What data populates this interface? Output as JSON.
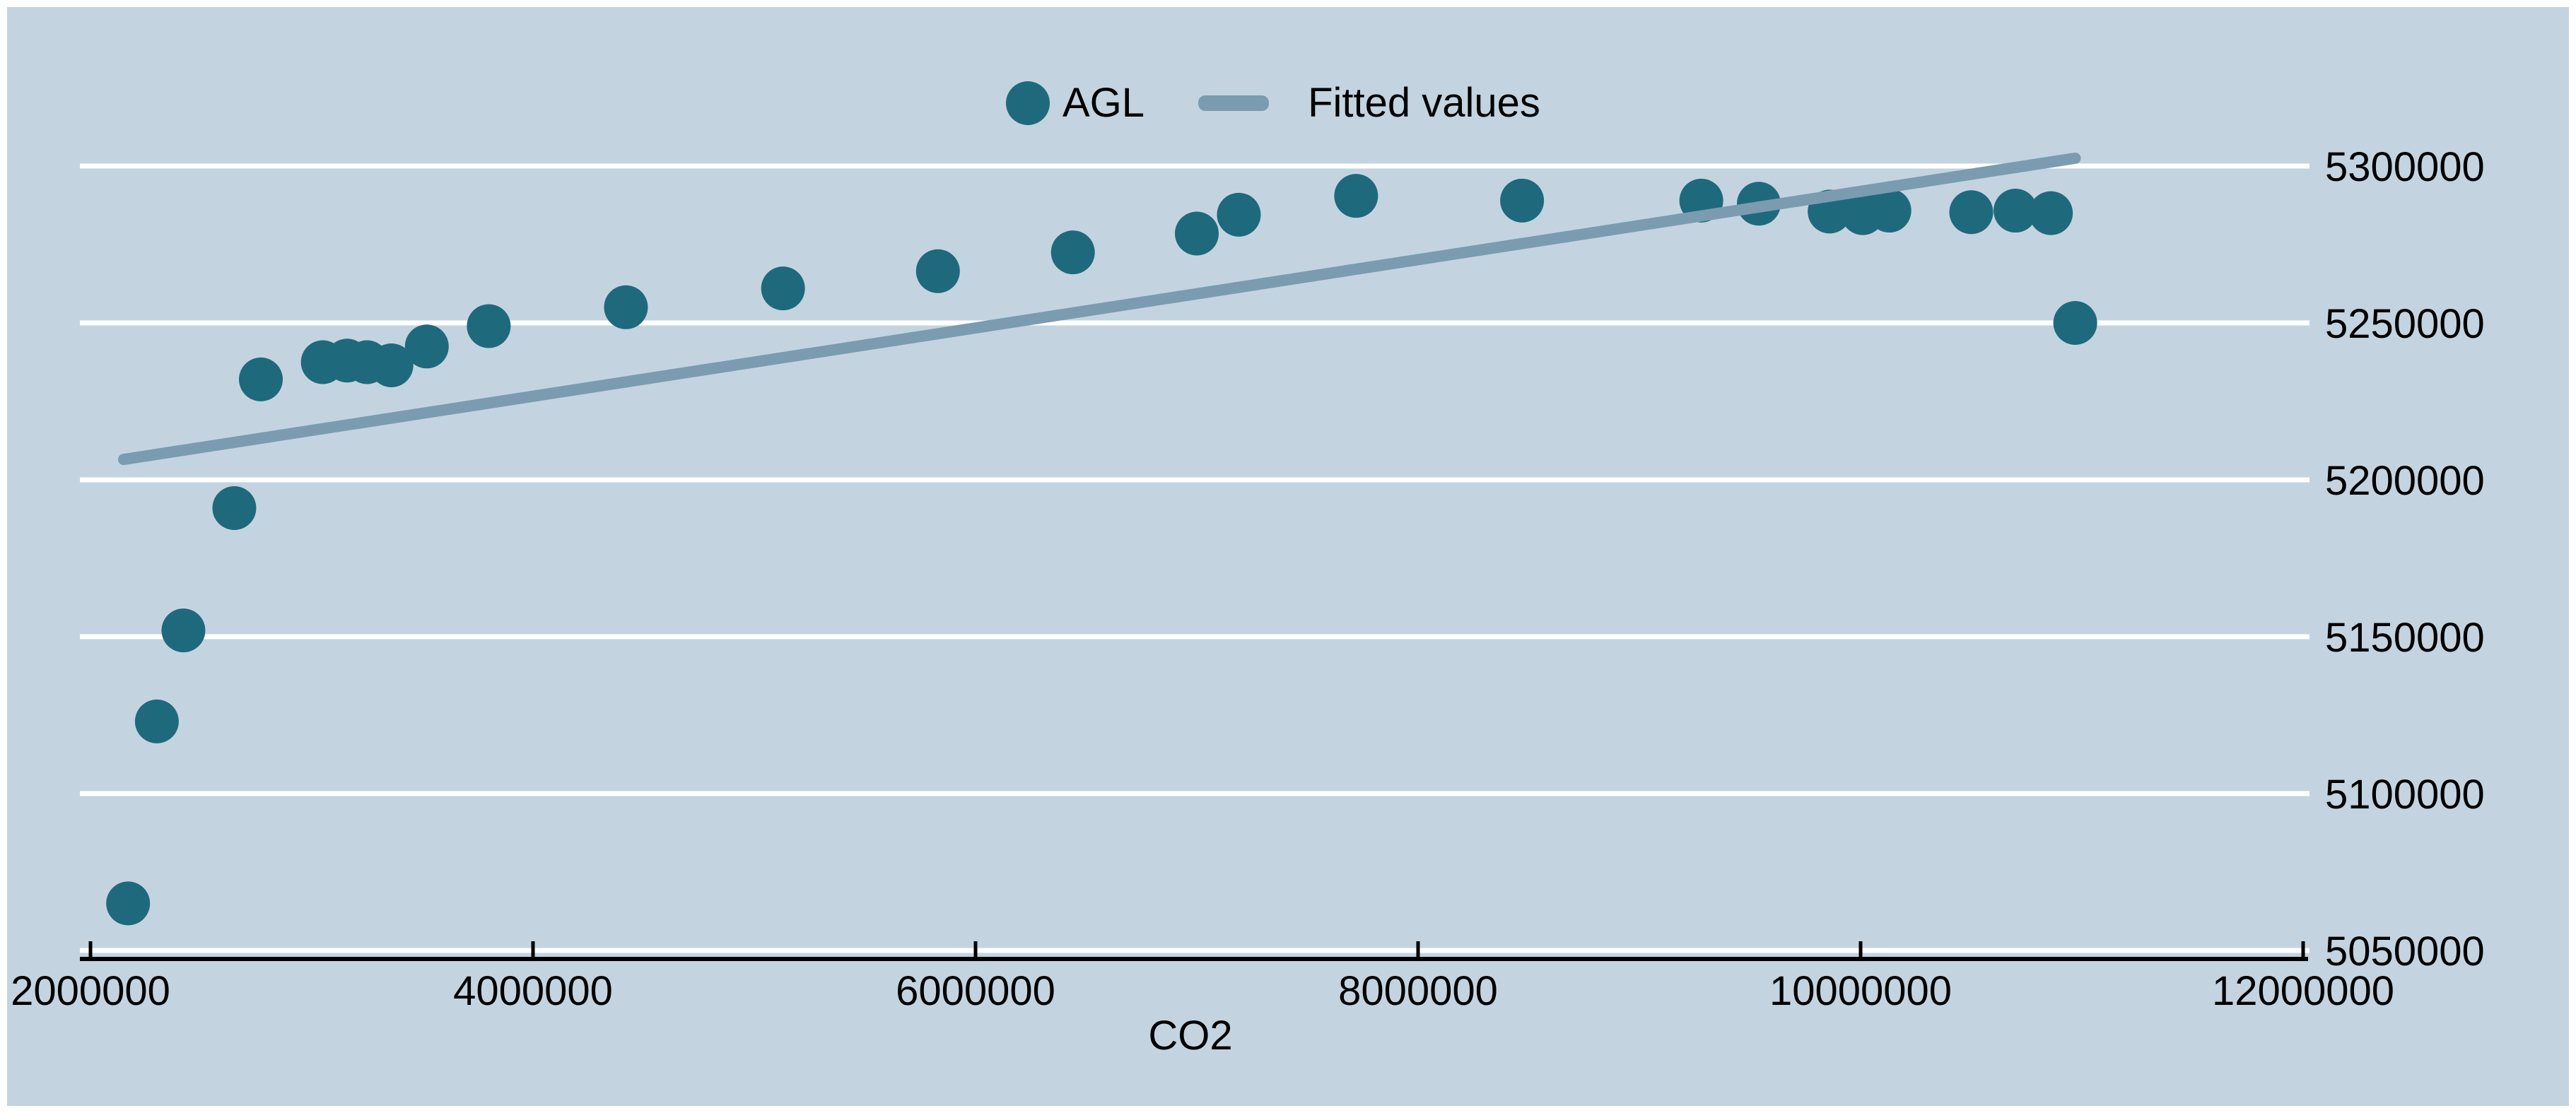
{
  "figure_title": "",
  "legend": {
    "items": [
      {
        "label": "AGL",
        "marker": "circle"
      },
      {
        "label": "Fitted values",
        "marker": "line"
      }
    ]
  },
  "axes": {
    "x_label": "CO2",
    "x_tick_labels": [
      "2000000",
      "4000000",
      "6000000",
      "8000000",
      "10000000",
      "12000000"
    ],
    "y_tick_labels": [
      "5050000",
      "5100000",
      "5150000",
      "5200000",
      "5250000",
      "5300000"
    ]
  },
  "chart_data": {
    "type": "scatter",
    "title": "",
    "xlabel": "CO2",
    "ylabel": "",
    "legend_position": "top-center",
    "grid": "horizontal-white",
    "xlim": [
      1952000,
      11995000
    ],
    "ylim": [
      5048000,
      5303000
    ],
    "x_ticks": [
      2000000,
      4000000,
      6000000,
      8000000,
      10000000,
      12000000
    ],
    "y_ticks": [
      5050000,
      5100000,
      5150000,
      5200000,
      5250000,
      5300000
    ],
    "series": [
      {
        "name": "AGL",
        "type": "scatter",
        "marker": "circle",
        "color": "#1f697d",
        "points": [
          [
            2170000,
            5065000
          ],
          [
            2300000,
            5123000
          ],
          [
            2420000,
            5152000
          ],
          [
            2650000,
            5191000
          ],
          [
            2770000,
            5232000
          ],
          [
            3050000,
            5237500
          ],
          [
            3160000,
            5238000
          ],
          [
            3250000,
            5237500
          ],
          [
            3360000,
            5236500
          ],
          [
            3520000,
            5242500
          ],
          [
            3800000,
            5249000
          ],
          [
            4420000,
            5255000
          ],
          [
            5130000,
            5261000
          ],
          [
            5830000,
            5266500
          ],
          [
            6440000,
            5272500
          ],
          [
            7000000,
            5278500
          ],
          [
            7190000,
            5284500
          ],
          [
            7720000,
            5290500
          ],
          [
            8470000,
            5289000
          ],
          [
            9280000,
            5289000
          ],
          [
            9540000,
            5288000
          ],
          [
            9860000,
            5285500
          ],
          [
            10010000,
            5285000
          ],
          [
            10130000,
            5285800
          ],
          [
            10500000,
            5285300
          ],
          [
            10700000,
            5285800
          ],
          [
            10860000,
            5285000
          ],
          [
            10970000,
            5250000
          ]
        ]
      },
      {
        "name": "Fitted values",
        "type": "line",
        "color": "#7b9bb0",
        "points": [
          [
            2150000,
            5206500
          ],
          [
            10970000,
            5302500
          ]
        ]
      }
    ],
    "colors": {
      "background": "#c3d4e0",
      "grid": "#ffffff",
      "axis": "#000000",
      "text": "#000000",
      "scatter": "#1f697d",
      "fit_line": "#7b9bb0"
    }
  }
}
